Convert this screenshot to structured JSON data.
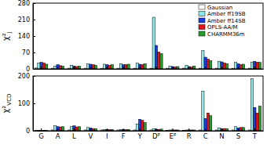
{
  "chart_data": [
    {
      "type": "bar",
      "y_label": "χ²",
      "y_label_subscript": "J",
      "categories": [
        "G",
        "A",
        "L",
        "V",
        "I",
        "F",
        "Y",
        "Dᴾ",
        "Eᴾ",
        "R",
        "C",
        "N",
        "S",
        "T"
      ],
      "series": [
        {
          "name": "Gaussian",
          "color": "#ffffff",
          "values": [
            4,
            3,
            3,
            3,
            3,
            3,
            3,
            3,
            3,
            3,
            3,
            3,
            3,
            3
          ]
        },
        {
          "name": "Amber ff19SB",
          "color": "#8fe8e8",
          "values": [
            25,
            12,
            15,
            22,
            20,
            22,
            25,
            220,
            12,
            15,
            78,
            32,
            28,
            28
          ]
        },
        {
          "name": "Amber ff14SB",
          "color": "#1a3fe0",
          "values": [
            28,
            18,
            12,
            20,
            18,
            18,
            20,
            100,
            10,
            10,
            50,
            30,
            22,
            32
          ]
        },
        {
          "name": "OPLS-AA/M",
          "color": "#e0141a",
          "values": [
            25,
            14,
            10,
            18,
            15,
            18,
            18,
            72,
            8,
            8,
            42,
            25,
            18,
            28
          ]
        },
        {
          "name": "CHARMM36m",
          "color": "#2a9a2a",
          "values": [
            20,
            12,
            12,
            15,
            18,
            20,
            22,
            65,
            10,
            12,
            35,
            22,
            20,
            28
          ]
        }
      ],
      "ylim": [
        0,
        280
      ],
      "yticks": [
        0,
        70,
        140,
        210,
        280
      ],
      "legend": "upper right",
      "tick_labels": "y"
    },
    {
      "type": "bar",
      "y_label": "χ²",
      "y_label_subscript": "VCD",
      "categories": [
        "G",
        "A",
        "L",
        "V",
        "I",
        "F",
        "Y",
        "Dᴾ",
        "Eᴾ",
        "R",
        "C",
        "N",
        "S",
        "T"
      ],
      "series": [
        {
          "color": "#ffffff",
          "values": [
            1,
            3,
            3,
            3,
            3,
            3,
            3,
            3,
            2,
            2,
            3,
            3,
            3,
            3
          ]
        },
        {
          "color": "#8fe8e8",
          "values": [
            2,
            18,
            15,
            12,
            5,
            5,
            25,
            8,
            3,
            3,
            145,
            10,
            15,
            190
          ]
        },
        {
          "color": "#1a3fe0",
          "values": [
            2,
            15,
            18,
            10,
            5,
            5,
            42,
            6,
            3,
            3,
            45,
            8,
            10,
            85
          ]
        },
        {
          "color": "#e0141a",
          "values": [
            2,
            14,
            14,
            8,
            4,
            4,
            38,
            5,
            3,
            3,
            65,
            8,
            12,
            65
          ]
        },
        {
          "color": "#2a9a2a",
          "values": [
            2,
            15,
            15,
            8,
            5,
            5,
            30,
            6,
            3,
            3,
            55,
            8,
            12,
            90
          ]
        }
      ],
      "ylim": [
        0,
        200
      ],
      "yticks": [
        0,
        100,
        200
      ]
    }
  ]
}
